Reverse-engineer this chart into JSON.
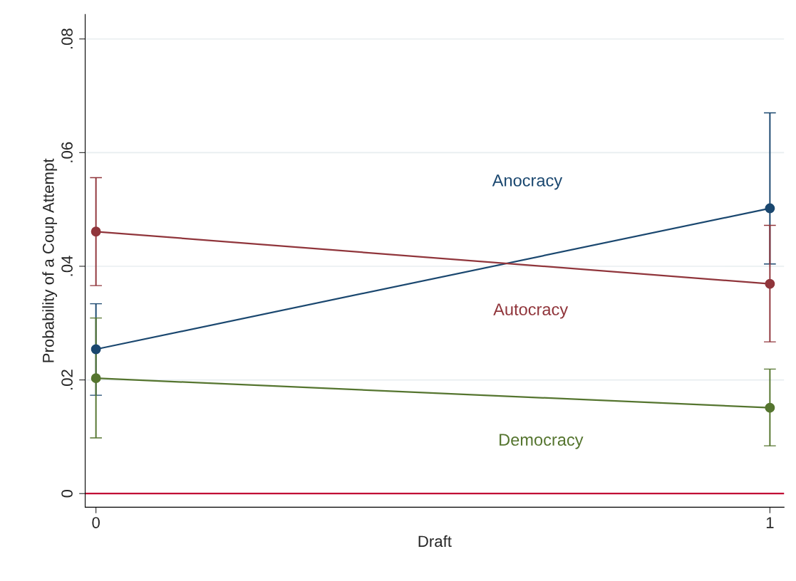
{
  "chart_data": {
    "type": "line",
    "xlabel": "Draft",
    "ylabel": "Probability of a Coup Attempt",
    "x": [
      0,
      1
    ],
    "xlim": [
      -0.016,
      1.021
    ],
    "xticks": [
      0,
      1
    ],
    "ylim": [
      -0.0024,
      0.0843
    ],
    "yticks": [
      {
        "value": 0,
        "label": "0"
      },
      {
        "value": 0.02,
        "label": ".02"
      },
      {
        "value": 0.04,
        "label": ".04"
      },
      {
        "value": 0.06,
        "label": ".06"
      },
      {
        "value": 0.08,
        "label": ".08"
      }
    ],
    "grid": "y",
    "marker": "circle",
    "line_style": "solid",
    "legend": false,
    "series": [
      {
        "name": "Anocracy",
        "color": "#1a476f",
        "values": [
          0.0254,
          0.0502
        ],
        "errors": [
          [
            0.0173,
            0.0334
          ],
          [
            0.0404,
            0.067
          ]
        ]
      },
      {
        "name": "Autocracy",
        "color": "#90353b",
        "values": [
          0.0461,
          0.0369
        ],
        "errors": [
          [
            0.0366,
            0.0556
          ],
          [
            0.0267,
            0.0472
          ]
        ]
      },
      {
        "name": "Democracy",
        "color": "#55752f",
        "values": [
          0.0203,
          0.0151
        ],
        "errors": [
          [
            0.0098,
            0.0309
          ],
          [
            0.0084,
            0.0219
          ]
        ]
      }
    ],
    "ref_lines": [
      {
        "axis": "y",
        "value": 0,
        "color": "#c10534"
      }
    ]
  }
}
